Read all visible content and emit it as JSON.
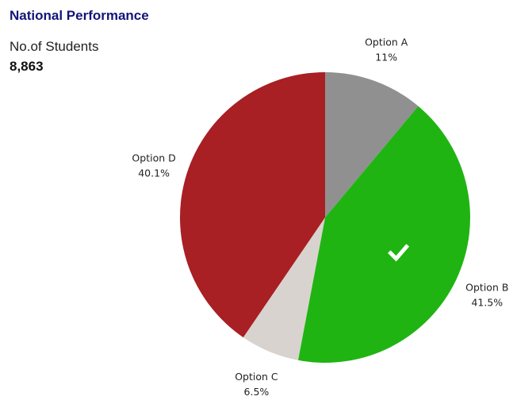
{
  "header": {
    "title": "National Performance",
    "students_label": "No.of Students",
    "students_value": "8,863"
  },
  "chart_data": {
    "type": "pie",
    "title": "",
    "slices": [
      {
        "name": "Option A",
        "value": 11,
        "label": "11%",
        "color": "#909090"
      },
      {
        "name": "Option B",
        "value": 41.5,
        "label": "41.5%",
        "color": "#20b413",
        "correct": true
      },
      {
        "name": "Option C",
        "value": 6.5,
        "label": "6.5%",
        "color": "#d8d3ce"
      },
      {
        "name": "Option D",
        "value": 40.1,
        "label": "40.1%",
        "color": "#a81f24"
      }
    ],
    "start": "top, clockwise",
    "correct_icon": "checkmark-icon"
  }
}
